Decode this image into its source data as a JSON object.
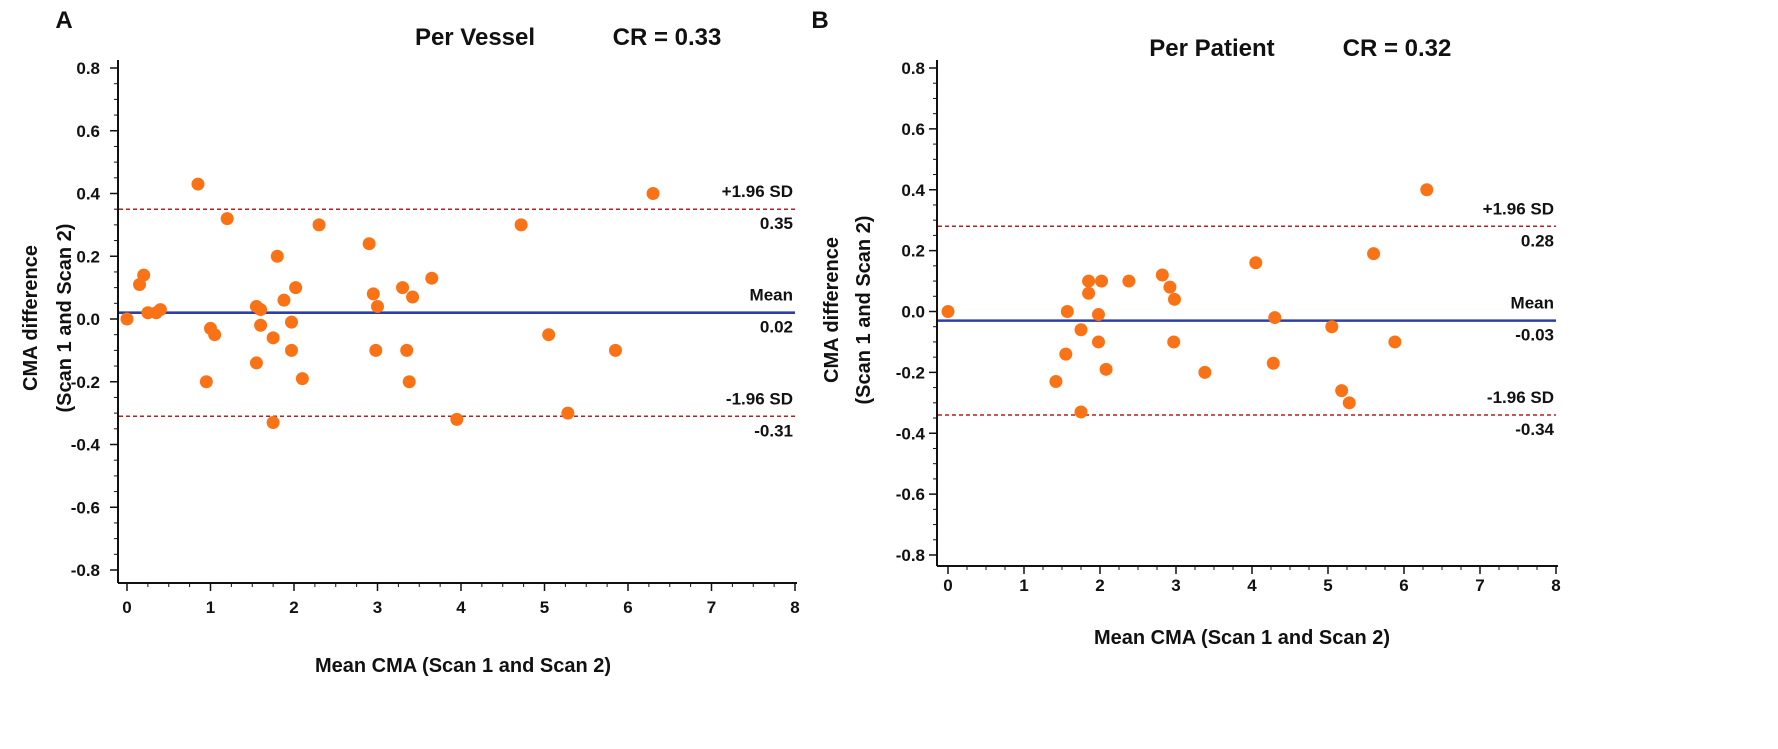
{
  "chart_data": [
    {
      "type": "scatter",
      "panel": "A",
      "title": "Per Vessel",
      "cr_label": "CR = 0.33",
      "xlabel": "Mean CMA (Scan 1 and Scan 2)",
      "ylabel_line1": "CMA difference",
      "ylabel_line2": "(Scan 1 and Scan 2)",
      "xlim": [
        0,
        8
      ],
      "ylim": [
        -0.8,
        0.8
      ],
      "x_ticks": [
        "0",
        "1",
        "2",
        "3",
        "4",
        "5",
        "6",
        "7",
        "8"
      ],
      "y_ticks": [
        "0.8",
        "0.6",
        "0.4",
        "0.2",
        "0.0",
        "-0.2",
        "-0.4",
        "-0.6",
        "-0.8"
      ],
      "grid": false,
      "reference_lines": [
        {
          "name": "+1.96 SD",
          "value": 0.35,
          "value_label": "0.35",
          "style": "dashed",
          "color": "#b22222"
        },
        {
          "name": "Mean",
          "value": 0.02,
          "value_label": "0.02",
          "style": "solid",
          "color": "#2e3ea8"
        },
        {
          "name": "-1.96 SD",
          "value": -0.31,
          "value_label": "-0.31",
          "style": "dashed",
          "color": "#b22222"
        }
      ],
      "point_color": "#f97316",
      "points": [
        [
          0.0,
          0.0
        ],
        [
          0.15,
          0.11
        ],
        [
          0.2,
          0.14
        ],
        [
          0.25,
          0.02
        ],
        [
          0.35,
          0.02
        ],
        [
          0.4,
          0.03
        ],
        [
          0.85,
          0.43
        ],
        [
          0.95,
          -0.2
        ],
        [
          1.0,
          -0.03
        ],
        [
          1.05,
          -0.05
        ],
        [
          1.2,
          0.32
        ],
        [
          1.55,
          0.04
        ],
        [
          1.55,
          -0.14
        ],
        [
          1.6,
          0.03
        ],
        [
          1.6,
          -0.02
        ],
        [
          1.75,
          -0.06
        ],
        [
          1.75,
          -0.33
        ],
        [
          1.8,
          0.2
        ],
        [
          1.88,
          0.06
        ],
        [
          1.97,
          -0.01
        ],
        [
          1.97,
          -0.1
        ],
        [
          2.02,
          0.1
        ],
        [
          2.1,
          -0.19
        ],
        [
          2.3,
          0.3
        ],
        [
          2.9,
          0.24
        ],
        [
          2.95,
          0.08
        ],
        [
          2.98,
          -0.1
        ],
        [
          3.0,
          0.04
        ],
        [
          3.3,
          0.1
        ],
        [
          3.35,
          -0.1
        ],
        [
          3.38,
          -0.2
        ],
        [
          3.42,
          0.07
        ],
        [
          3.65,
          0.13
        ],
        [
          3.95,
          -0.32
        ],
        [
          4.72,
          0.3
        ],
        [
          5.05,
          -0.05
        ],
        [
          5.28,
          -0.3
        ],
        [
          5.85,
          -0.1
        ],
        [
          6.3,
          0.4
        ]
      ]
    },
    {
      "type": "scatter",
      "panel": "B",
      "title": "Per Patient",
      "cr_label": "CR = 0.32",
      "xlabel": "Mean CMA (Scan 1 and Scan 2)",
      "ylabel_line1": "CMA difference",
      "ylabel_line2": "(Scan 1 and Scan 2)",
      "xlim": [
        0,
        8
      ],
      "ylim": [
        -0.8,
        0.8
      ],
      "x_ticks": [
        "0",
        "1",
        "2",
        "3",
        "4",
        "5",
        "6",
        "7",
        "8"
      ],
      "y_ticks": [
        "0.8",
        "0.6",
        "0.4",
        "0.2",
        "0.0",
        "-0.2",
        "-0.4",
        "-0.6",
        "-0.8"
      ],
      "grid": false,
      "reference_lines": [
        {
          "name": "+1.96 SD",
          "value": 0.28,
          "value_label": "0.28",
          "style": "dashed",
          "color": "#b22222"
        },
        {
          "name": "Mean",
          "value": -0.03,
          "value_label": "-0.03",
          "style": "solid",
          "color": "#2e3ea8"
        },
        {
          "name": "-1.96 SD",
          "value": -0.34,
          "value_label": "-0.34",
          "style": "dashed",
          "color": "#b22222"
        }
      ],
      "point_color": "#f97316",
      "points": [
        [
          0.0,
          0.0
        ],
        [
          1.42,
          -0.23
        ],
        [
          1.55,
          -0.14
        ],
        [
          1.57,
          0.0
        ],
        [
          1.75,
          -0.06
        ],
        [
          1.75,
          -0.33
        ],
        [
          1.85,
          0.1
        ],
        [
          1.85,
          0.06
        ],
        [
          1.98,
          -0.1
        ],
        [
          1.98,
          -0.01
        ],
        [
          2.02,
          0.1
        ],
        [
          2.08,
          -0.19
        ],
        [
          2.38,
          0.1
        ],
        [
          2.82,
          0.12
        ],
        [
          2.92,
          0.08
        ],
        [
          2.97,
          -0.1
        ],
        [
          2.98,
          0.04
        ],
        [
          3.38,
          -0.2
        ],
        [
          4.05,
          0.16
        ],
        [
          4.28,
          -0.17
        ],
        [
          4.3,
          -0.02
        ],
        [
          5.05,
          -0.05
        ],
        [
          5.18,
          -0.26
        ],
        [
          5.28,
          -0.3
        ],
        [
          5.6,
          0.19
        ],
        [
          5.88,
          -0.1
        ],
        [
          6.3,
          0.4
        ]
      ]
    }
  ]
}
